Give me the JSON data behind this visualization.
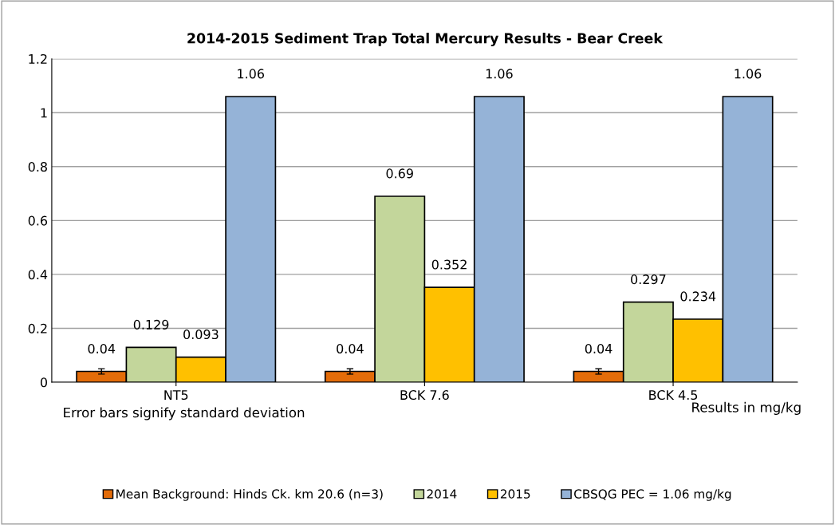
{
  "chart_data": {
    "type": "bar",
    "title": "2014-2015 Sediment Trap Total Mercury Results - Bear Creek",
    "categories": [
      "NT5",
      "BCK 7.6",
      "BCK 4.5"
    ],
    "series": [
      {
        "name": "Mean Background: Hinds Ck. km 20.6 (n=3)",
        "color": "#e36c09",
        "values": [
          0.04,
          0.04,
          0.04
        ],
        "errors": [
          0.01,
          0.01,
          0.01
        ]
      },
      {
        "name": "2014",
        "color": "#c3d69b",
        "values": [
          0.129,
          0.69,
          0.297
        ]
      },
      {
        "name": "2015",
        "color": "#ffc000",
        "values": [
          0.093,
          0.352,
          0.234
        ]
      },
      {
        "name": "CBSQG PEC = 1.06 mg/kg",
        "color": "#95b3d7",
        "values": [
          1.06,
          1.06,
          1.06
        ]
      }
    ],
    "ylim": [
      0,
      1.2
    ],
    "yticks": [
      0,
      0.2,
      0.4,
      0.6,
      0.8,
      1,
      1.2
    ],
    "grid": "y",
    "legend": "bottom",
    "data_labels": true,
    "annotations": [
      "Error bars signify standard deviation",
      "Results in mg/kg"
    ]
  }
}
